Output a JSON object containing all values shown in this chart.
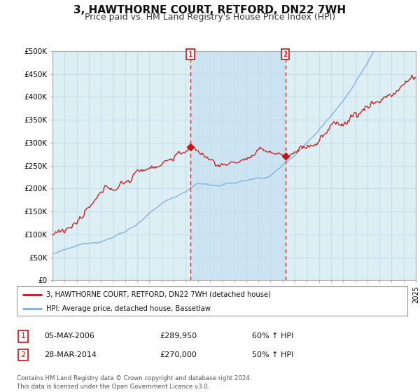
{
  "title": "3, HAWTHORNE COURT, RETFORD, DN22 7WH",
  "subtitle": "Price paid vs. HM Land Registry's House Price Index (HPI)",
  "title_fontsize": 11,
  "subtitle_fontsize": 9,
  "ylim": [
    0,
    500000
  ],
  "yticks": [
    0,
    50000,
    100000,
    150000,
    200000,
    250000,
    300000,
    350000,
    400000,
    450000,
    500000
  ],
  "ytick_labels": [
    "£0",
    "£50K",
    "£100K",
    "£150K",
    "£200K",
    "£250K",
    "£300K",
    "£350K",
    "£400K",
    "£450K",
    "£500K"
  ],
  "background_color": "#ffffff",
  "plot_bg_color": "#ddeef5",
  "grid_color": "#c8dde8",
  "shade_color": "#c5dff0",
  "red_color": "#cc1111",
  "blue_color": "#7aace0",
  "sale1_year": 2006.37,
  "sale1_price": 289950,
  "sale2_year": 2014.22,
  "sale2_price": 270000,
  "legend_red_label": "3, HAWTHORNE COURT, RETFORD, DN22 7WH (detached house)",
  "legend_blue_label": "HPI: Average price, detached house, Bassetlaw",
  "table_row1": [
    "1",
    "05-MAY-2006",
    "£289,950",
    "60% ↑ HPI"
  ],
  "table_row2": [
    "2",
    "28-MAR-2014",
    "£270,000",
    "50% ↑ HPI"
  ],
  "footnote": "Contains HM Land Registry data © Crown copyright and database right 2024.\nThis data is licensed under the Open Government Licence v3.0.",
  "xstart_year": 1995,
  "xend_year": 2025
}
